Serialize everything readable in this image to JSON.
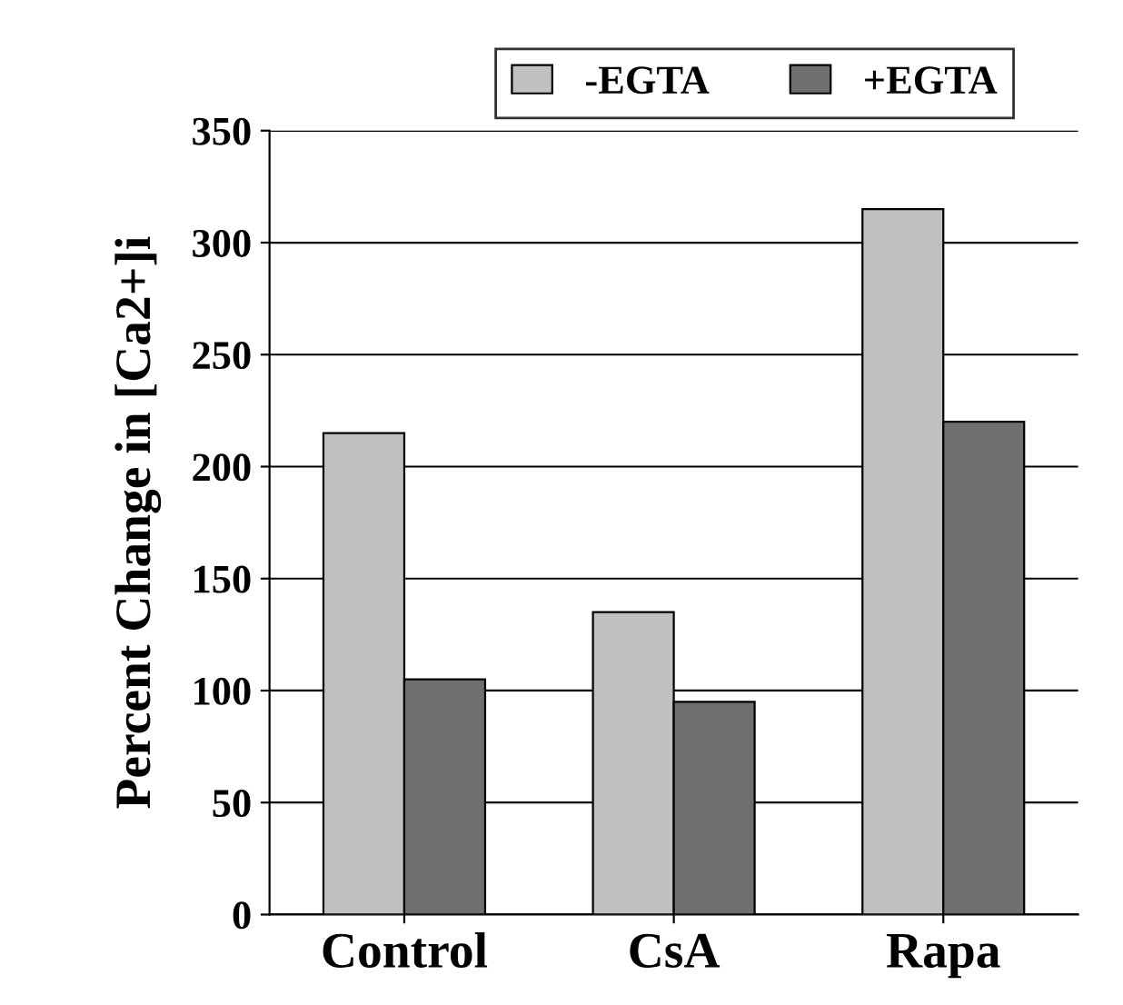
{
  "chart_data": {
    "type": "bar",
    "ylabel": "Percent Change in [Ca2+]i",
    "categories": [
      "Control",
      "CsA",
      "Rapa"
    ],
    "series": [
      {
        "name": "-EGTA",
        "color": "#c0c0c0",
        "values": [
          215,
          135,
          315
        ]
      },
      {
        "name": "+EGTA",
        "color": "#707070",
        "values": [
          105,
          95,
          220
        ]
      }
    ],
    "ylim": [
      0,
      350
    ],
    "yticks": [
      0,
      50,
      100,
      150,
      200,
      250,
      300,
      350
    ],
    "grid": "y",
    "legend": "top"
  }
}
